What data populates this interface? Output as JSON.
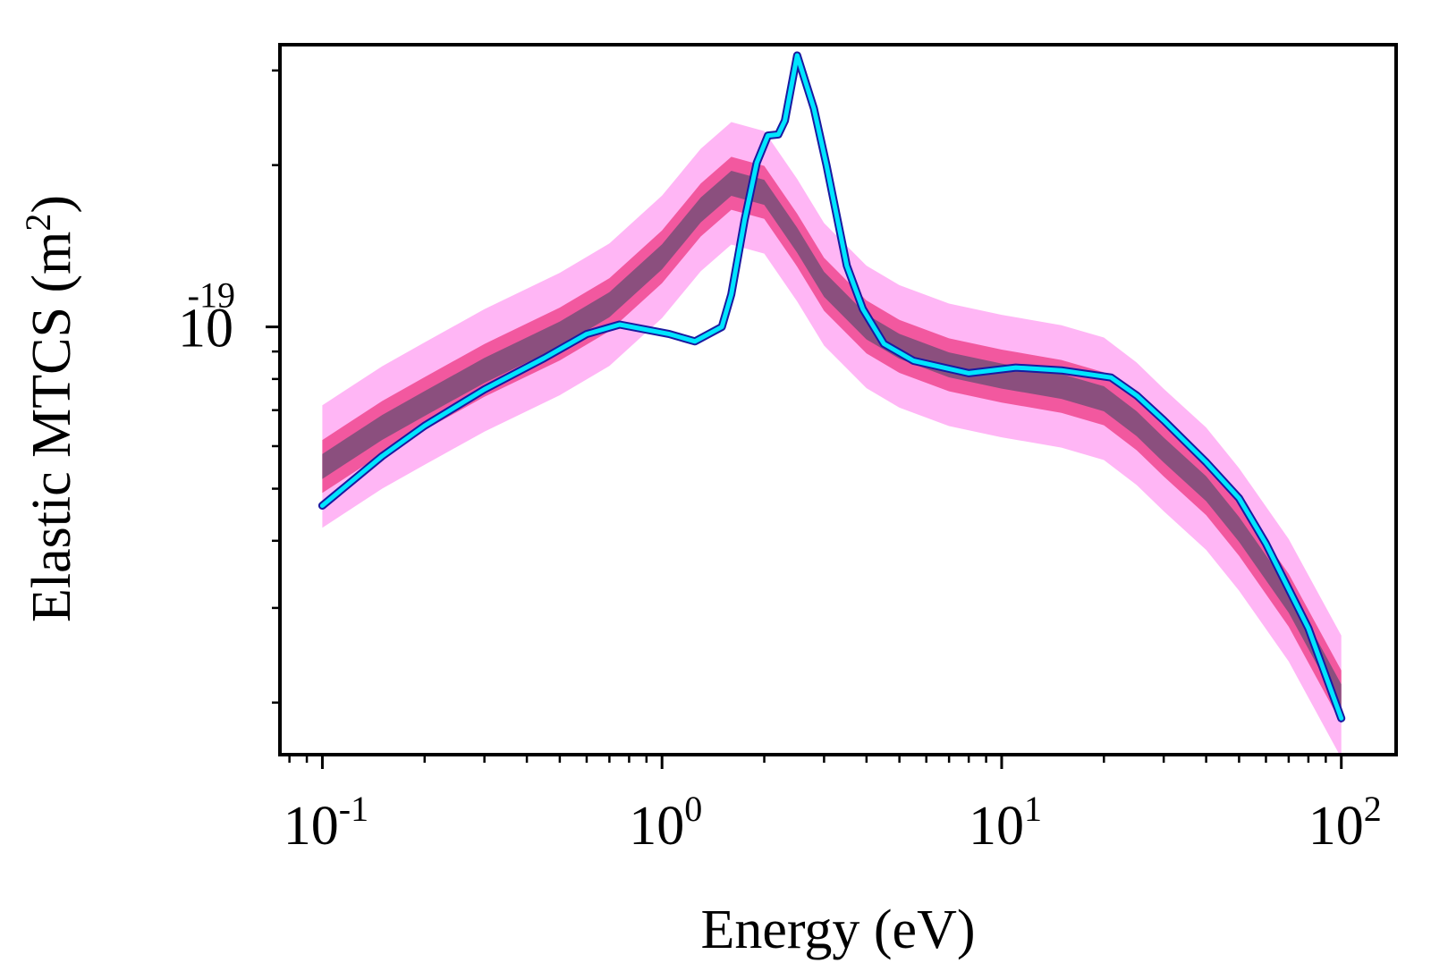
{
  "chart_data": {
    "type": "line",
    "title": "",
    "xlabel": "Energy (eV)",
    "ylabel": "Elastic MTCS (m",
    "ylabel_sup": "2",
    "ylabel_close": ")",
    "x_scale": "log",
    "y_scale": "log",
    "xlim": [
      0.075,
      145
    ],
    "ylim": [
      1.6e-20,
      3.35e-19
    ],
    "grid": false,
    "legend": "none",
    "x_ticks": [
      {
        "value": 0.1,
        "base": "10",
        "exp": "-1"
      },
      {
        "value": 1,
        "base": "10",
        "exp": "0"
      },
      {
        "value": 10,
        "base": "10",
        "exp": "1"
      },
      {
        "value": 100,
        "base": "10",
        "exp": "2"
      }
    ],
    "y_ticks": [
      {
        "value": 1e-19,
        "base": "10",
        "exp": "-19"
      }
    ],
    "y_minor_ticks": [
      2e-20,
      3e-20,
      4e-20,
      5e-20,
      6e-20,
      7e-20,
      8e-20,
      9e-20,
      2e-19,
      3e-19
    ],
    "band": {
      "x": [
        0.1,
        0.15,
        0.2,
        0.3,
        0.5,
        0.7,
        1.0,
        1.3,
        1.6,
        2.0,
        2.5,
        3.0,
        4.0,
        5.0,
        7.0,
        10,
        15,
        20,
        25,
        30,
        40,
        50,
        70,
        100
      ],
      "median": [
        5.5e-20,
        6.5e-20,
        7.2e-20,
        8.3e-20,
        9.7e-20,
        1.1e-19,
        1.35e-19,
        1.65e-19,
        1.85e-19,
        1.78e-19,
        1.45e-19,
        1.2e-19,
        1e-19,
        9.2e-20,
        8.5e-20,
        8.1e-20,
        7.75e-20,
        7.35e-20,
        6.6e-20,
        5.9e-20,
        5e-20,
        4.2e-20,
        3.1e-20,
        2.05e-20
      ],
      "inner_factor": 1.055,
      "middle_factor": 1.12,
      "outer_factor": 1.3,
      "inner_color": "#8b4f7e",
      "middle_color": "#f2589f",
      "outer_color": "#ffb6f5"
    },
    "series": [
      {
        "color": "#00e5ff",
        "edge_color": "#1a1aa0",
        "x": [
          0.1,
          0.15,
          0.2,
          0.3,
          0.45,
          0.6,
          0.75,
          1.05,
          1.25,
          1.5,
          1.6,
          1.75,
          1.9,
          2.05,
          2.2,
          2.3,
          2.5,
          2.8,
          3.05,
          3.5,
          3.9,
          4.5,
          5.5,
          8.0,
          11,
          15,
          21,
          25,
          30,
          40,
          50,
          60,
          80,
          100
        ],
        "values": [
          4.65e-20,
          5.75e-20,
          6.55e-20,
          7.65e-20,
          8.75e-20,
          9.7e-20,
          1.01e-19,
          9.7e-20,
          9.4e-20,
          1e-19,
          1.15e-19,
          1.58e-19,
          2.02e-19,
          2.27e-19,
          2.28e-19,
          2.42e-19,
          3.2e-19,
          2.55e-19,
          2e-19,
          1.3e-19,
          1.08e-19,
          9.3e-20,
          8.65e-20,
          8.2e-20,
          8.4e-20,
          8.3e-20,
          8.05e-20,
          7.45e-20,
          6.7e-20,
          5.6e-20,
          4.8e-20,
          3.95e-20,
          2.75e-20,
          1.87e-20
        ]
      }
    ]
  }
}
